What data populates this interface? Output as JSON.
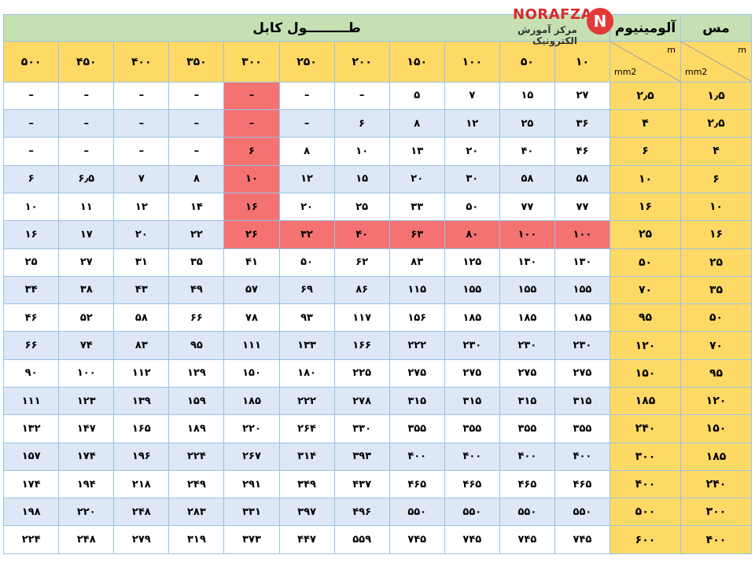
{
  "header": {
    "copper_label": "مس",
    "aluminum_label": "آلومینیوم",
    "cable_length_label": "طـــــــــول کابل",
    "unit_m": "m",
    "unit_mm2": "mm2"
  },
  "logo": {
    "brand": "NORAFZA",
    "tagline": "مرکز آموزش الکترونیک",
    "badge_letter": "N"
  },
  "lengths": [
    "۱۰",
    "۵۰",
    "۱۰۰",
    "۱۵۰",
    "۲۰۰",
    "۲۵۰",
    "۳۰۰",
    "۳۵۰",
    "۴۰۰",
    "۴۵۰",
    "۵۰۰"
  ],
  "rows": [
    {
      "copper": "۱٫۵",
      "aluminum": "۲٫۵",
      "values": [
        "۲۷",
        "۱۵",
        "۷",
        "۵",
        "–",
        "–",
        "–",
        "–",
        "–",
        "–",
        "–"
      ]
    },
    {
      "copper": "۲٫۵",
      "aluminum": "۴",
      "values": [
        "۳۶",
        "۲۵",
        "۱۲",
        "۸",
        "۶",
        "–",
        "–",
        "–",
        "–",
        "–",
        "–"
      ]
    },
    {
      "copper": "۴",
      "aluminum": "۶",
      "values": [
        "۴۶",
        "۴۰",
        "۲۰",
        "۱۳",
        "۱۰",
        "۸",
        "۶",
        "–",
        "–",
        "–",
        "–"
      ]
    },
    {
      "copper": "۶",
      "aluminum": "۱۰",
      "values": [
        "۵۸",
        "۵۸",
        "۳۰",
        "۲۰",
        "۱۵",
        "۱۲",
        "۱۰",
        "۸",
        "۷",
        "۶٫۵",
        "۶"
      ]
    },
    {
      "copper": "۱۰",
      "aluminum": "۱۶",
      "values": [
        "۷۷",
        "۷۷",
        "۵۰",
        "۳۳",
        "۲۵",
        "۲۰",
        "۱۶",
        "۱۴",
        "۱۲",
        "۱۱",
        "۱۰"
      ]
    },
    {
      "copper": "۱۶",
      "aluminum": "۲۵",
      "values": [
        "۱۰۰",
        "۱۰۰",
        "۸۰",
        "۶۳",
        "۴۰",
        "۳۲",
        "۲۶",
        "۲۲",
        "۲۰",
        "۱۷",
        "۱۶"
      ]
    },
    {
      "copper": "۲۵",
      "aluminum": "۵۰",
      "values": [
        "۱۳۰",
        "۱۳۰",
        "۱۲۵",
        "۸۳",
        "۶۲",
        "۵۰",
        "۴۱",
        "۳۵",
        "۳۱",
        "۲۷",
        "۲۵"
      ]
    },
    {
      "copper": "۳۵",
      "aluminum": "۷۰",
      "values": [
        "۱۵۵",
        "۱۵۵",
        "۱۵۵",
        "۱۱۵",
        "۸۶",
        "۶۹",
        "۵۷",
        "۴۹",
        "۴۳",
        "۳۸",
        "۳۴"
      ]
    },
    {
      "copper": "۵۰",
      "aluminum": "۹۵",
      "values": [
        "۱۸۵",
        "۱۸۵",
        "۱۸۵",
        "۱۵۶",
        "۱۱۷",
        "۹۳",
        "۷۸",
        "۶۶",
        "۵۸",
        "۵۲",
        "۴۶"
      ]
    },
    {
      "copper": "۷۰",
      "aluminum": "۱۲۰",
      "values": [
        "۲۳۰",
        "۲۳۰",
        "۲۳۰",
        "۲۲۲",
        "۱۶۶",
        "۱۳۳",
        "۱۱۱",
        "۹۵",
        "۸۳",
        "۷۴",
        "۶۶"
      ]
    },
    {
      "copper": "۹۵",
      "aluminum": "۱۵۰",
      "values": [
        "۲۷۵",
        "۲۷۵",
        "۲۷۵",
        "۲۷۵",
        "۲۲۵",
        "۱۸۰",
        "۱۵۰",
        "۱۲۹",
        "۱۱۲",
        "۱۰۰",
        "۹۰"
      ]
    },
    {
      "copper": "۱۲۰",
      "aluminum": "۱۸۵",
      "values": [
        "۳۱۵",
        "۳۱۵",
        "۳۱۵",
        "۳۱۵",
        "۲۷۸",
        "۲۲۲",
        "۱۸۵",
        "۱۵۹",
        "۱۳۹",
        "۱۲۳",
        "۱۱۱"
      ]
    },
    {
      "copper": "۱۵۰",
      "aluminum": "۲۴۰",
      "values": [
        "۳۵۵",
        "۳۵۵",
        "۳۵۵",
        "۳۵۵",
        "۳۳۰",
        "۲۶۴",
        "۲۲۰",
        "۱۸۹",
        "۱۶۵",
        "۱۴۷",
        "۱۳۲"
      ]
    },
    {
      "copper": "۱۸۵",
      "aluminum": "۳۰۰",
      "values": [
        "۴۰۰",
        "۴۰۰",
        "۴۰۰",
        "۴۰۰",
        "۳۹۳",
        "۳۱۴",
        "۲۶۷",
        "۲۲۴",
        "۱۹۶",
        "۱۷۴",
        "۱۵۷"
      ]
    },
    {
      "copper": "۲۴۰",
      "aluminum": "۴۰۰",
      "values": [
        "۴۶۵",
        "۴۶۵",
        "۴۶۵",
        "۴۶۵",
        "۴۳۷",
        "۳۴۹",
        "۲۹۱",
        "۲۴۹",
        "۲۱۸",
        "۱۹۴",
        "۱۷۴"
      ]
    },
    {
      "copper": "۳۰۰",
      "aluminum": "۵۰۰",
      "values": [
        "۵۵۰",
        "۵۵۰",
        "۵۵۰",
        "۵۵۰",
        "۴۹۶",
        "۳۹۷",
        "۳۳۱",
        "۲۸۳",
        "۲۴۸",
        "۲۲۰",
        "۱۹۸"
      ]
    },
    {
      "copper": "۴۰۰",
      "aluminum": "۶۰۰",
      "values": [
        "۷۴۵",
        "۷۴۵",
        "۷۴۵",
        "۷۴۵",
        "۵۵۹",
        "۴۴۷",
        "۳۷۳",
        "۳۱۹",
        "۲۷۹",
        "۲۴۸",
        "۲۲۴"
      ]
    }
  ],
  "highlight": {
    "color": "#f47272",
    "column_index": 6,
    "column_rows_through": 5,
    "row_index": 5,
    "row_cols_through": 6
  },
  "colors": {
    "title_bg": "#c6e0b4",
    "header_bg": "#ffd966",
    "band_bg": "#dde7f5",
    "grid": "#9bc2e6",
    "brand": "#d62c2c"
  }
}
